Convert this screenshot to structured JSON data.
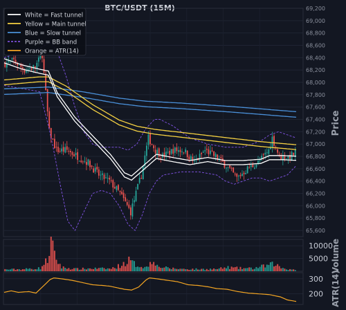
{
  "chart_data": [
    {
      "type": "candlestick",
      "title": "BTC/USDT (15M)",
      "ylabel": "Price",
      "ylim": [
        65500,
        69200
      ],
      "yticks": [
        65600,
        65800,
        66000,
        66200,
        66400,
        66600,
        66800,
        67000,
        67200,
        67400,
        67600,
        67800,
        68000,
        68200,
        68400,
        68600,
        68800,
        69000,
        69200
      ],
      "grid": true,
      "legend_position": "top-left",
      "candle_colors": {
        "up": "#26a69a",
        "down": "#ef5350"
      },
      "close_path": [
        [
          0,
          68300
        ],
        [
          6,
          68350
        ],
        [
          12,
          68200
        ],
        [
          18,
          68250
        ],
        [
          22,
          68450
        ],
        [
          26,
          67200
        ],
        [
          30,
          66900
        ],
        [
          36,
          66900
        ],
        [
          42,
          66800
        ],
        [
          48,
          66700
        ],
        [
          54,
          66500
        ],
        [
          60,
          66400
        ],
        [
          66,
          66200
        ],
        [
          72,
          65900
        ],
        [
          78,
          66500
        ],
        [
          82,
          67100
        ],
        [
          86,
          66900
        ],
        [
          90,
          66800
        ],
        [
          96,
          66900
        ],
        [
          102,
          66900
        ],
        [
          108,
          66700
        ],
        [
          114,
          66900
        ],
        [
          120,
          66800
        ],
        [
          126,
          66650
        ],
        [
          132,
          66450
        ],
        [
          138,
          66600
        ],
        [
          144,
          66700
        ],
        [
          150,
          66900
        ],
        [
          152,
          67100
        ],
        [
          156,
          66800
        ],
        [
          160,
          66780
        ],
        [
          165,
          66850
        ]
      ],
      "candle_count": 165,
      "series": [
        {
          "name": "White = Fast tunnel",
          "color": "#ffffff",
          "style": "double-line",
          "points": [
            [
              0,
              68350
            ],
            [
              10,
              68250
            ],
            [
              20,
              68180
            ],
            [
              25,
              68150
            ],
            [
              30,
              67800
            ],
            [
              40,
              67400
            ],
            [
              50,
              67100
            ],
            [
              60,
              66800
            ],
            [
              68,
              66500
            ],
            [
              72,
              66450
            ],
            [
              78,
              66600
            ],
            [
              86,
              66800
            ],
            [
              95,
              66750
            ],
            [
              105,
              66700
            ],
            [
              115,
              66750
            ],
            [
              125,
              66700
            ],
            [
              135,
              66700
            ],
            [
              145,
              66720
            ],
            [
              150,
              66780
            ],
            [
              158,
              66780
            ],
            [
              165,
              66770
            ]
          ]
        },
        {
          "name": "Yellow = Main tunnel",
          "color": "#f5d142",
          "style": "double-line",
          "points": [
            [
              0,
              68000
            ],
            [
              20,
              68050
            ],
            [
              25,
              68050
            ],
            [
              35,
              67900
            ],
            [
              50,
              67600
            ],
            [
              65,
              67350
            ],
            [
              75,
              67250
            ],
            [
              85,
              67200
            ],
            [
              100,
              67150
            ],
            [
              115,
              67100
            ],
            [
              130,
              67050
            ],
            [
              145,
              67000
            ],
            [
              165,
              66950
            ]
          ]
        },
        {
          "name": "Blue = Slow tunnel",
          "color": "#4a90d9",
          "style": "double-line",
          "points": [
            [
              0,
              67850
            ],
            [
              25,
              67880
            ],
            [
              45,
              67800
            ],
            [
              65,
              67700
            ],
            [
              80,
              67650
            ],
            [
              100,
              67620
            ],
            [
              130,
              67560
            ],
            [
              165,
              67480
            ]
          ]
        },
        {
          "name": "Purple = BB band",
          "color": "#7a4fd8",
          "style": "dashed",
          "upper": [
            [
              0,
              68400
            ],
            [
              10,
              68500
            ],
            [
              20,
              68550
            ],
            [
              26,
              68650
            ],
            [
              30,
              68500
            ],
            [
              35,
              68100
            ],
            [
              40,
              67600
            ],
            [
              45,
              67200
            ],
            [
              50,
              67000
            ],
            [
              55,
              66950
            ],
            [
              60,
              66950
            ],
            [
              65,
              66950
            ],
            [
              70,
              66900
            ],
            [
              75,
              67000
            ],
            [
              80,
              67250
            ],
            [
              85,
              67400
            ],
            [
              88,
              67400
            ],
            [
              95,
              67300
            ],
            [
              100,
              67200
            ],
            [
              105,
              67100
            ],
            [
              115,
              67000
            ],
            [
              125,
              66950
            ],
            [
              130,
              66950
            ],
            [
              135,
              66950
            ],
            [
              140,
              67000
            ],
            [
              145,
              67050
            ],
            [
              150,
              67150
            ],
            [
              155,
              67200
            ],
            [
              160,
              67150
            ],
            [
              165,
              67100
            ]
          ],
          "lower": [
            [
              0,
              67950
            ],
            [
              10,
              67900
            ],
            [
              20,
              67850
            ],
            [
              25,
              67300
            ],
            [
              28,
              66900
            ],
            [
              32,
              66300
            ],
            [
              36,
              65750
            ],
            [
              40,
              65600
            ],
            [
              45,
              65900
            ],
            [
              50,
              66200
            ],
            [
              55,
              66250
            ],
            [
              60,
              66200
            ],
            [
              65,
              66000
            ],
            [
              70,
              65700
            ],
            [
              74,
              65600
            ],
            [
              78,
              65850
            ],
            [
              82,
              66200
            ],
            [
              86,
              66400
            ],
            [
              90,
              66500
            ],
            [
              100,
              66550
            ],
            [
              110,
              66550
            ],
            [
              120,
              66500
            ],
            [
              125,
              66400
            ],
            [
              130,
              66350
            ],
            [
              135,
              66400
            ],
            [
              140,
              66450
            ],
            [
              145,
              66450
            ],
            [
              150,
              66400
            ],
            [
              155,
              66450
            ],
            [
              160,
              66500
            ],
            [
              165,
              66650
            ]
          ]
        },
        {
          "name": "Orange = ATR(14)",
          "color": "#f5a623",
          "style": "line"
        }
      ]
    },
    {
      "type": "bar",
      "ylabel": "Volume",
      "ylim": [
        0,
        12500
      ],
      "yticks": [
        5000,
        10000
      ],
      "levels": [
        [
          0,
          700
        ],
        [
          10,
          800
        ],
        [
          20,
          1200
        ],
        [
          24,
          4500
        ],
        [
          26,
          11500
        ],
        [
          28,
          6000
        ],
        [
          32,
          1500
        ],
        [
          40,
          900
        ],
        [
          50,
          1100
        ],
        [
          60,
          1000
        ],
        [
          66,
          2500
        ],
        [
          70,
          4200
        ],
        [
          74,
          2500
        ],
        [
          80,
          1500
        ],
        [
          84,
          5500
        ],
        [
          86,
          2000
        ],
        [
          92,
          1200
        ],
        [
          100,
          900
        ],
        [
          110,
          800
        ],
        [
          120,
          900
        ],
        [
          126,
          1500
        ],
        [
          132,
          1200
        ],
        [
          140,
          1100
        ],
        [
          150,
          2500
        ],
        [
          152,
          3000
        ],
        [
          156,
          1400
        ],
        [
          160,
          800
        ],
        [
          165,
          700
        ]
      ]
    },
    {
      "type": "line",
      "ylabel": "ATR(14)",
      "ylim": [
        130,
        340
      ],
      "yticks": [
        200,
        300
      ],
      "series": [
        {
          "name": "ATR(14)",
          "color": "#f5a623",
          "points": [
            [
              0,
              210
            ],
            [
              4,
              220
            ],
            [
              8,
              210
            ],
            [
              14,
              215
            ],
            [
              18,
              205
            ],
            [
              22,
              250
            ],
            [
              26,
              295
            ],
            [
              28,
              305
            ],
            [
              32,
              300
            ],
            [
              38,
              290
            ],
            [
              44,
              275
            ],
            [
              50,
              260
            ],
            [
              56,
              255
            ],
            [
              60,
              250
            ],
            [
              64,
              240
            ],
            [
              68,
              230
            ],
            [
              72,
              225
            ],
            [
              76,
              245
            ],
            [
              80,
              290
            ],
            [
              82,
              305
            ],
            [
              86,
              300
            ],
            [
              92,
              290
            ],
            [
              98,
              280
            ],
            [
              104,
              260
            ],
            [
              110,
              255
            ],
            [
              116,
              245
            ],
            [
              120,
              235
            ],
            [
              126,
              230
            ],
            [
              132,
              215
            ],
            [
              138,
              205
            ],
            [
              144,
              200
            ],
            [
              150,
              195
            ],
            [
              156,
              180
            ],
            [
              160,
              160
            ],
            [
              165,
              150
            ]
          ]
        }
      ]
    }
  ]
}
